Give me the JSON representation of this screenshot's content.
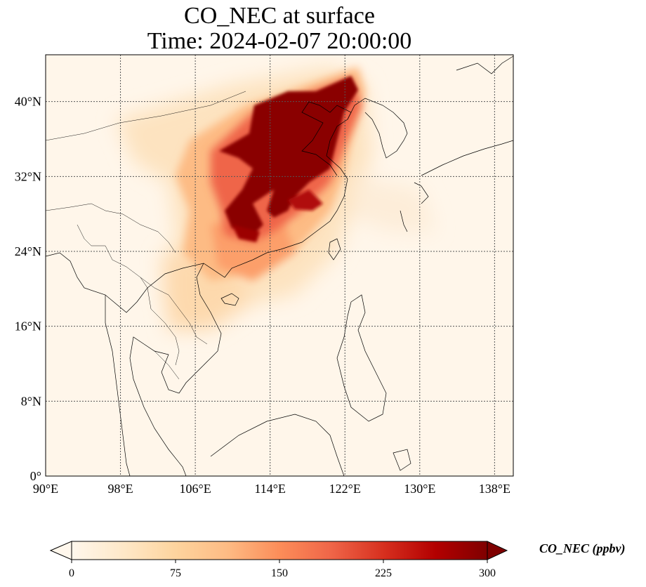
{
  "title": {
    "line1": "CO_NEC at surface",
    "line2": "Time: 2024-02-07 20:00:00"
  },
  "map": {
    "lon_range": [
      90,
      140
    ],
    "lat_range": [
      0,
      45
    ],
    "lon_ticks": [
      "90°E",
      "98°E",
      "106°E",
      "114°E",
      "122°E",
      "130°E",
      "138°E"
    ],
    "lat_ticks": [
      "0°",
      "8°N",
      "16°N",
      "24°N",
      "32°N",
      "40°N"
    ],
    "gridlines": true,
    "colormap": "OrRd"
  },
  "colorbar": {
    "label": "CO_NEC (ppbv)",
    "ticks": [
      "0",
      "75",
      "150",
      "225",
      "300"
    ],
    "range": [
      0,
      300
    ],
    "extend": "both",
    "colors": [
      "#fff7ec",
      "#fee8c8",
      "#fdd49e",
      "#fdbb84",
      "#fc8d59",
      "#ef6548",
      "#d7301f",
      "#b30000",
      "#7f0000"
    ]
  }
}
